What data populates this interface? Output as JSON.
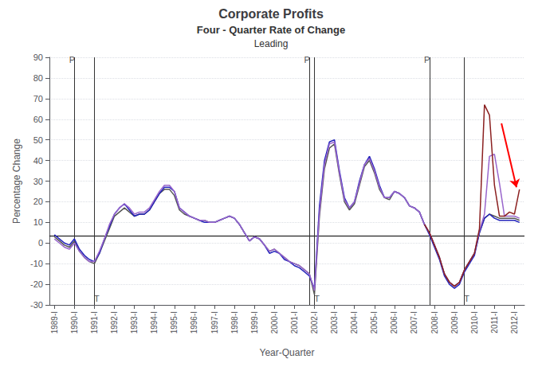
{
  "chart_data": {
    "type": "line",
    "title": "Corporate Profits",
    "subtitle": [
      "Four - Quarter Rate of Change",
      "Leading"
    ],
    "xlabel": "Year-Quarter",
    "ylabel": "Percentage Change",
    "xlim": [
      1988.75,
      2012.5
    ],
    "ylim": [
      -30,
      90
    ],
    "xticks": [
      {
        "value": 1989,
        "label": "1989-I"
      },
      {
        "value": 1990,
        "label": "1990-I"
      },
      {
        "value": 1991,
        "label": "1991-I"
      },
      {
        "value": 1992,
        "label": "1992-I"
      },
      {
        "value": 1993,
        "label": "1993-I"
      },
      {
        "value": 1994,
        "label": "1994-I"
      },
      {
        "value": 1995,
        "label": "1995-I"
      },
      {
        "value": 1996,
        "label": "1996-I"
      },
      {
        "value": 1997,
        "label": "1997-I"
      },
      {
        "value": 1998,
        "label": "1998-I"
      },
      {
        "value": 1999,
        "label": "1999-I"
      },
      {
        "value": 2000,
        "label": "2000-I"
      },
      {
        "value": 2001,
        "label": "2001-I"
      },
      {
        "value": 2002,
        "label": "2002-I"
      },
      {
        "value": 2003,
        "label": "2003-I"
      },
      {
        "value": 2004,
        "label": "2004-I"
      },
      {
        "value": 2005,
        "label": "2005-I"
      },
      {
        "value": 2006,
        "label": "2006-I"
      },
      {
        "value": 2007,
        "label": "2007-I"
      },
      {
        "value": 2008,
        "label": "2008-I"
      },
      {
        "value": 2009,
        "label": "2009-I"
      },
      {
        "value": 2010,
        "label": "2010-I"
      },
      {
        "value": 2011,
        "label": "2011-I"
      },
      {
        "value": 2012,
        "label": "2012-I"
      }
    ],
    "yticks": [
      -30,
      -20,
      -10,
      0,
      10,
      20,
      30,
      40,
      50,
      60,
      70,
      80,
      90
    ],
    "grid": "y",
    "reference_lines": {
      "y": [
        3.5
      ],
      "x": [
        1990.0,
        2001.75,
        2007.75,
        1991.0,
        2002.0,
        2009.5
      ]
    },
    "annotations": [
      {
        "text": "P",
        "x": 1989.88,
        "y": 89
      },
      {
        "text": "P",
        "x": 2001.63,
        "y": 89
      },
      {
        "text": "P",
        "x": 2007.63,
        "y": 89
      },
      {
        "text": "T",
        "x": 1991.12,
        "y": -27
      },
      {
        "text": "T",
        "x": 2002.12,
        "y": -27
      },
      {
        "text": "T",
        "x": 2009.62,
        "y": -27
      }
    ],
    "arrows": [
      {
        "x": 2011.35,
        "y": 58,
        "x_end": 2012.1,
        "y_end": 27,
        "color": "red"
      }
    ],
    "series": [
      {
        "color": "#555555",
        "x": [
          1989,
          1989.25,
          1989.5,
          1989.75,
          1990,
          1990.25,
          1990.5,
          1990.75,
          1991,
          1991.25,
          1991.5,
          1991.75,
          1992,
          1992.25,
          1992.5,
          1992.75,
          1993,
          1993.25,
          1993.5,
          1993.75,
          1994,
          1994.25,
          1994.5,
          1994.75,
          1995,
          1995.25,
          1995.5,
          1995.75,
          1996,
          1996.25,
          1996.5,
          1996.75,
          1997,
          1997.25,
          1997.5,
          1997.75,
          1998,
          1998.25,
          1998.5,
          1998.75,
          1999,
          1999.25,
          1999.5,
          1999.75,
          2000,
          2000.25,
          2000.5,
          2000.75,
          2001,
          2001.25,
          2001.5,
          2001.75,
          2002,
          2002.25,
          2002.5,
          2002.75,
          2003,
          2003.25,
          2003.5,
          2003.75,
          2004,
          2004.25,
          2004.5,
          2004.75,
          2005,
          2005.25,
          2005.5,
          2005.75,
          2006,
          2006.25,
          2006.5,
          2006.75,
          2007,
          2007.25,
          2007.5,
          2007.75,
          2008,
          2008.25,
          2008.5,
          2008.75,
          2009,
          2009.25,
          2009.5,
          2009.75,
          2010,
          2010.25,
          2010.5,
          2010.75,
          2011,
          2011.25,
          2011.5,
          2011.75,
          2012,
          2012.25
        ],
        "values": [
          3,
          1,
          -1,
          -2,
          1,
          -4,
          -7,
          -9,
          -10,
          -5,
          1,
          7,
          13,
          15,
          17,
          15,
          13,
          14,
          14,
          16,
          20,
          24,
          26,
          26,
          23,
          16,
          14,
          13,
          12,
          11,
          11,
          10,
          10,
          11,
          12,
          13,
          12,
          9,
          5,
          1,
          3,
          2,
          -1,
          -4,
          -3,
          -5,
          -7,
          -9,
          -10,
          -11,
          -13,
          -15,
          -25,
          13,
          36,
          46,
          48,
          33,
          20,
          16,
          19,
          28,
          37,
          40,
          34,
          26,
          22,
          21,
          25,
          24,
          22,
          18,
          17,
          15,
          9,
          5,
          -1,
          -7,
          -15,
          -19,
          -21,
          -19,
          -13,
          -9,
          -5,
          5,
          12,
          14,
          13,
          12,
          12,
          12,
          12,
          11
        ]
      },
      {
        "color": "#2222bb",
        "x": [
          1989,
          1989.25,
          1989.5,
          1989.75,
          1990,
          1990.25,
          1990.5,
          1990.75,
          1991,
          1991.25,
          1991.5,
          1991.75,
          1992,
          1992.25,
          1992.5,
          1992.75,
          1993,
          1993.25,
          1993.5,
          1993.75,
          1994,
          1994.25,
          1994.5,
          1994.75,
          1995,
          1995.25,
          1995.5,
          1995.75,
          1996,
          1996.25,
          1996.5,
          1996.75,
          1997,
          1997.25,
          1997.5,
          1997.75,
          1998,
          1998.25,
          1998.5,
          1998.75,
          1999,
          1999.25,
          1999.5,
          1999.75,
          2000,
          2000.25,
          2000.5,
          2000.75,
          2001,
          2001.25,
          2001.5,
          2001.75,
          2002,
          2002.25,
          2002.5,
          2002.75,
          2003,
          2003.25,
          2003.5,
          2003.75,
          2004,
          2004.25,
          2004.5,
          2004.75,
          2005,
          2005.25,
          2005.5,
          2005.75,
          2006,
          2006.25,
          2006.5,
          2006.75,
          2007,
          2007.25,
          2007.5,
          2007.75,
          2008,
          2008.25,
          2008.5,
          2008.75,
          2009,
          2009.25,
          2009.5,
          2009.75,
          2010,
          2010.25,
          2010.5,
          2010.75,
          2011,
          2011.25,
          2011.5,
          2011.75,
          2012,
          2012.25
        ],
        "values": [
          4,
          2,
          0,
          -1,
          2,
          -3,
          -6,
          -8,
          -9,
          -5,
          2,
          8,
          14,
          17,
          19,
          16,
          13,
          14,
          14,
          16,
          20,
          24,
          27,
          27,
          25,
          17,
          15,
          13,
          12,
          11,
          10,
          10,
          10,
          11,
          12,
          13,
          12,
          9,
          5,
          1,
          3,
          2,
          -1,
          -5,
          -4,
          -5,
          -8,
          -9,
          -11,
          -12,
          -14,
          -16,
          -22,
          18,
          40,
          49,
          50,
          35,
          22,
          17,
          20,
          30,
          38,
          42,
          36,
          28,
          22,
          22,
          25,
          24,
          22,
          18,
          17,
          15,
          9,
          4,
          -2,
          -8,
          -16,
          -20,
          -22,
          -20,
          -14,
          -10,
          -6,
          5,
          12,
          14,
          12,
          11,
          11,
          11,
          11,
          10
        ]
      },
      {
        "color": "#9966cc",
        "x": [
          1989,
          1989.25,
          1989.5,
          1989.75,
          1990,
          1990.25,
          1990.5,
          1990.75,
          1991,
          1991.25,
          1991.5,
          1991.75,
          1992,
          1992.25,
          1992.5,
          1992.75,
          1993,
          1993.25,
          1993.5,
          1993.75,
          1994,
          1994.25,
          1994.5,
          1994.75,
          1995,
          1995.25,
          1995.5,
          1995.75,
          1996,
          1996.25,
          1996.5,
          1996.75,
          1997,
          1997.25,
          1997.5,
          1997.75,
          1998,
          1998.25,
          1998.5,
          1998.75,
          1999,
          1999.25,
          1999.5,
          1999.75,
          2000,
          2000.25,
          2000.5,
          2000.75,
          2001,
          2001.25,
          2001.5,
          2001.75,
          2002,
          2002.25,
          2002.5,
          2002.75,
          2003,
          2003.25,
          2003.5,
          2003.75,
          2004,
          2004.25,
          2004.5,
          2004.75,
          2005,
          2005.25,
          2005.5,
          2005.75,
          2006,
          2006.25,
          2006.5,
          2006.75,
          2007,
          2007.25,
          2007.5,
          2007.75,
          2008,
          2008.25,
          2008.5,
          2008.75,
          2009,
          2009.25,
          2009.5,
          2009.75,
          2010,
          2010.25,
          2010.5,
          2010.75,
          2011,
          2011.25,
          2011.5,
          2011.75,
          2012,
          2012.25
        ],
        "values": [
          2,
          0,
          -2,
          -3,
          0,
          -4,
          -7,
          -9,
          -9,
          -4,
          2,
          9,
          14,
          17,
          19,
          17,
          14,
          15,
          15,
          17,
          21,
          25,
          28,
          28,
          25,
          17,
          15,
          13,
          12,
          11,
          11,
          10,
          10,
          11,
          12,
          13,
          12,
          9,
          5,
          1,
          3,
          2,
          -1,
          -4,
          -3,
          -5,
          -7,
          -9,
          -10,
          -11,
          -13,
          -15,
          -23,
          15,
          38,
          48,
          49,
          34,
          21,
          17,
          20,
          29,
          38,
          41,
          35,
          27,
          22,
          22,
          25,
          24,
          22,
          18,
          17,
          15,
          9,
          5,
          -1,
          -7,
          -15,
          -19,
          -21,
          -19,
          -13,
          -9,
          -5,
          6,
          14,
          42,
          43,
          29,
          13,
          13,
          13,
          12
        ]
      },
      {
        "color": "#8b2020",
        "x": [
          2007.5,
          2007.75,
          2008,
          2008.25,
          2008.5,
          2008.75,
          2009,
          2009.25,
          2009.5,
          2009.75,
          2010,
          2010.25,
          2010.5,
          2010.75,
          2011,
          2011.25,
          2011.5,
          2011.75,
          2012,
          2012.25
        ],
        "values": [
          9,
          5,
          -1,
          -7,
          -15,
          -19,
          -21,
          -19,
          -13,
          -9,
          -5,
          7,
          67,
          62,
          28,
          13,
          13,
          15,
          14,
          26
        ]
      }
    ]
  }
}
